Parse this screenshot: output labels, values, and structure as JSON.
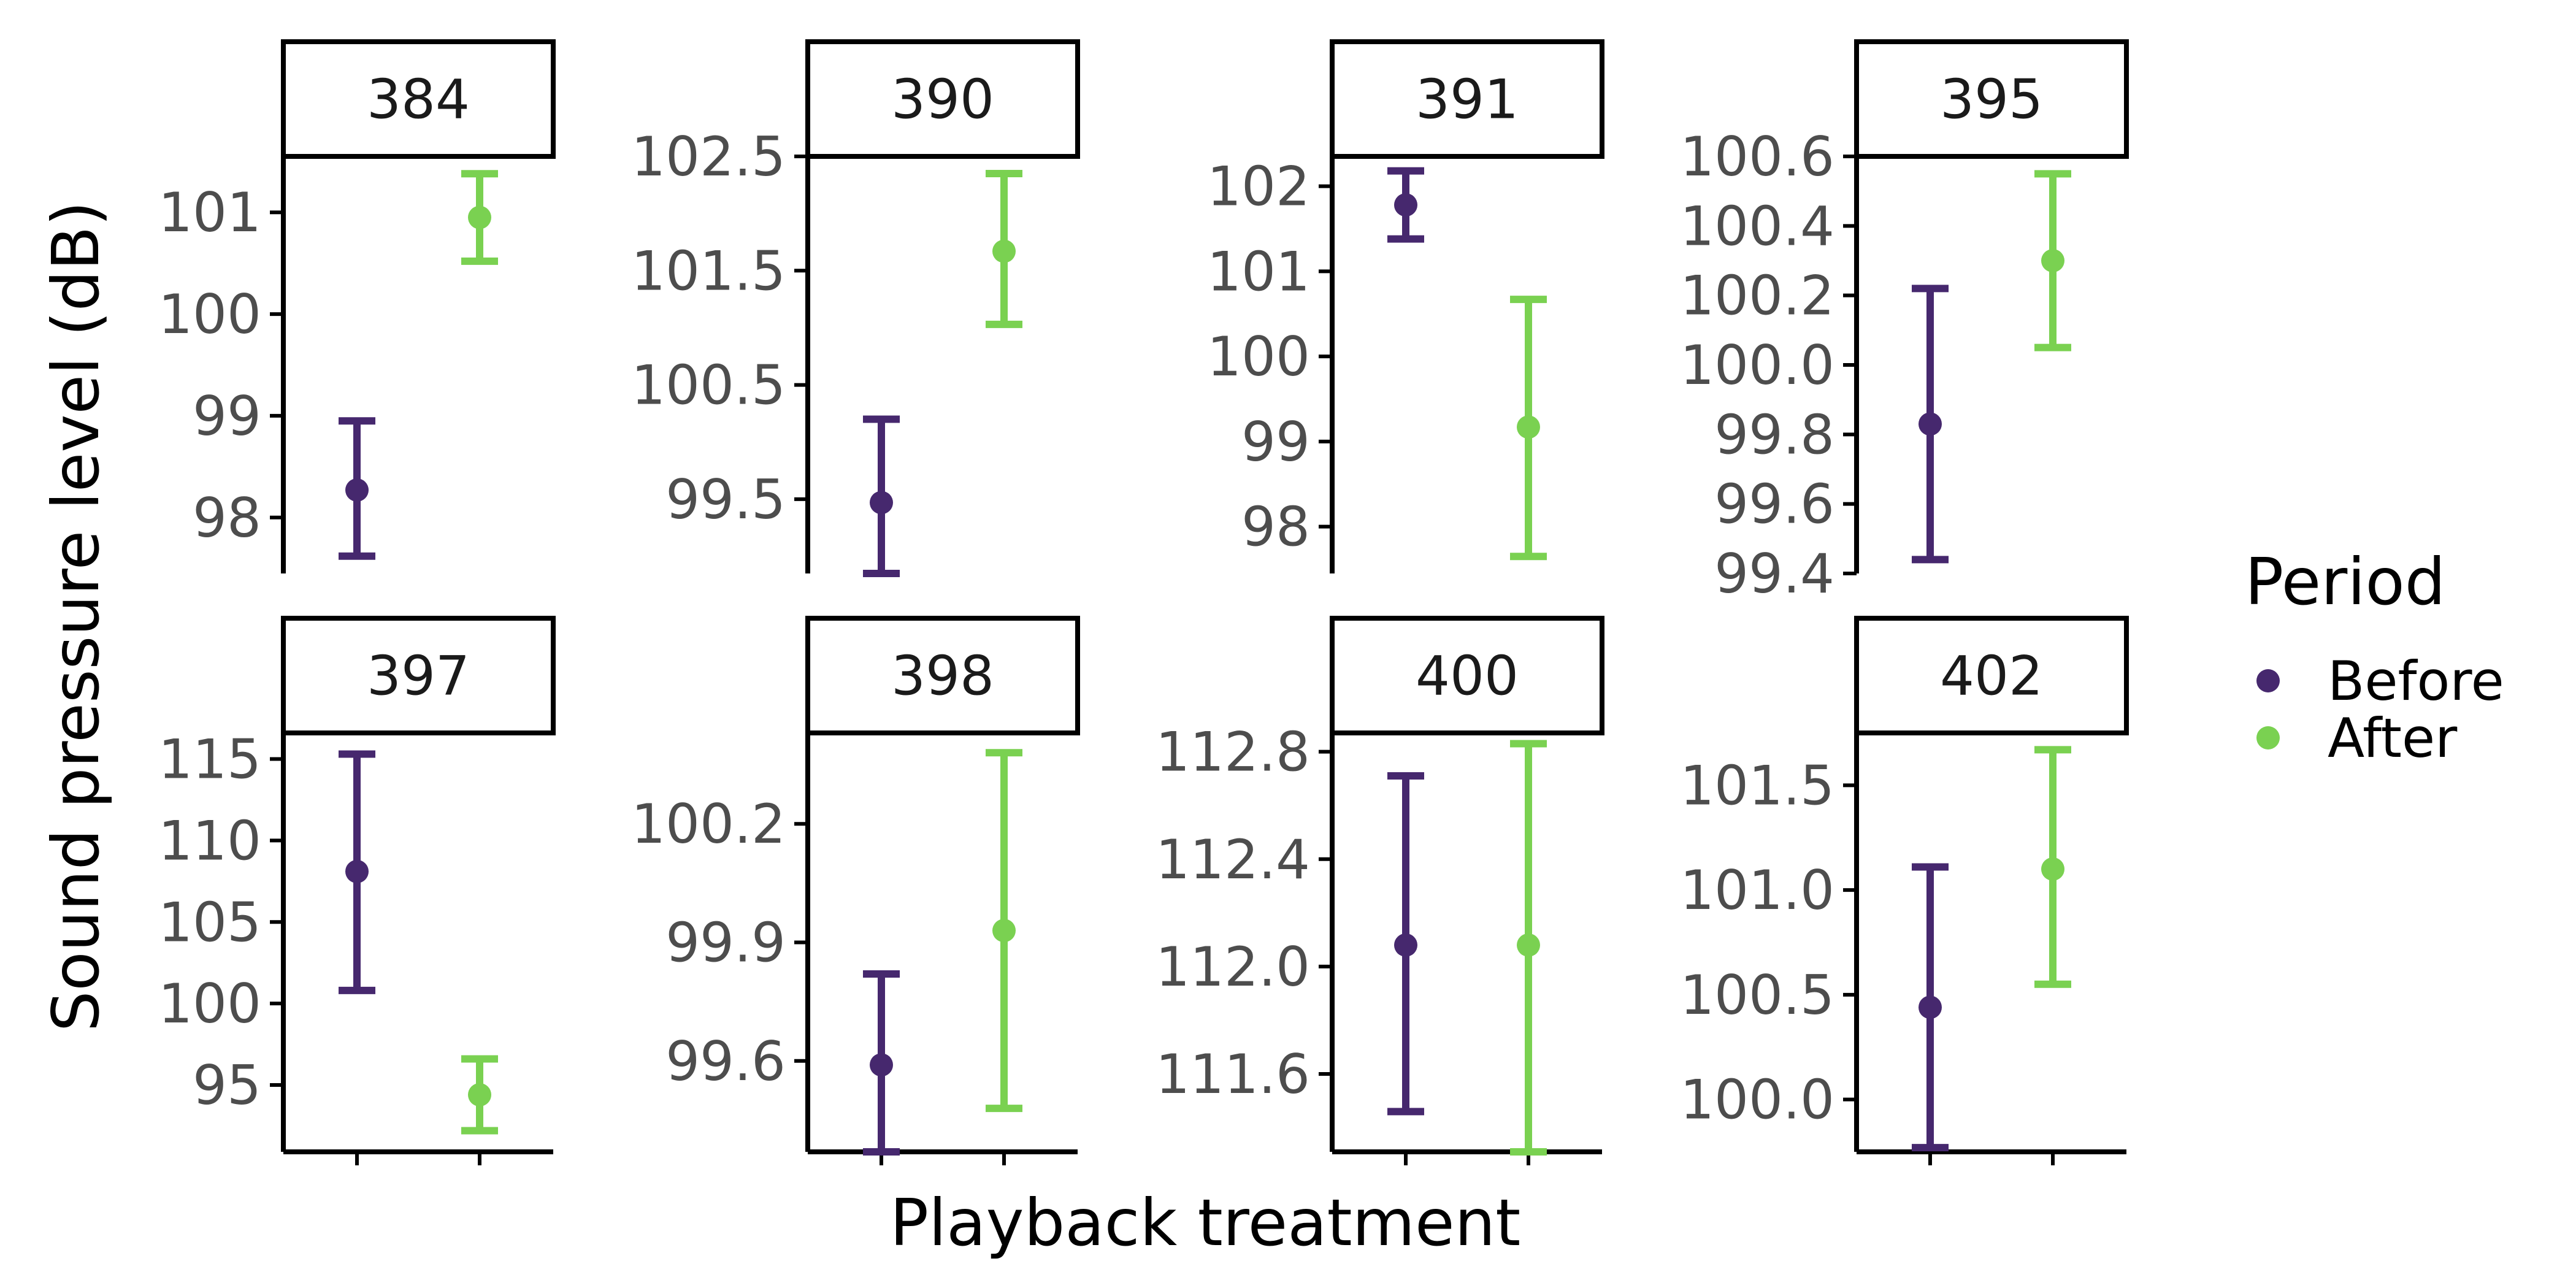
{
  "colors": {
    "before": "#46286e",
    "after": "#7ad151",
    "axis": "#000000",
    "tick_text": "#4d4d4d",
    "strip_fill": "#ffffff"
  },
  "axis_labels": {
    "x": "Playback treatment",
    "y": "Sound pressure level (dB)"
  },
  "legend": {
    "title": "Period",
    "position": "right",
    "items": [
      {
        "label": "Before",
        "color": "#46286e"
      },
      {
        "label": "After",
        "color": "#7ad151"
      }
    ]
  },
  "chart_data": {
    "type": "errorbar",
    "layout": "facet grid, 2 rows x 4 columns, free y scales",
    "xlabel": "Playback treatment",
    "ylabel": "Sound pressure level (dB)",
    "categories": [
      "Before",
      "After"
    ],
    "x_tick_labels_shown": false,
    "grid": false,
    "legend_position": "right",
    "panels": [
      {
        "id": "384",
        "ylim": [
          97.45,
          101.55
        ],
        "yticks": [
          "98",
          "99",
          "100",
          "101"
        ],
        "series": [
          {
            "name": "Before",
            "mean": 98.27,
            "lower": 97.62,
            "upper": 98.95
          },
          {
            "name": "After",
            "mean": 100.95,
            "lower": 100.52,
            "upper": 101.38
          }
        ]
      },
      {
        "id": "390",
        "ylim": [
          98.85,
          102.5
        ],
        "yticks": [
          "99.5",
          "100.5",
          "101.5",
          "102.5"
        ],
        "series": [
          {
            "name": "Before",
            "mean": 99.47,
            "lower": 98.85,
            "upper": 100.2
          },
          {
            "name": "After",
            "mean": 101.67,
            "lower": 101.03,
            "upper": 102.35
          }
        ]
      },
      {
        "id": "391",
        "ylim": [
          97.45,
          102.35
        ],
        "yticks": [
          "98",
          "99",
          "100",
          "101",
          "102"
        ],
        "series": [
          {
            "name": "Before",
            "mean": 101.78,
            "lower": 101.38,
            "upper": 102.18
          },
          {
            "name": "After",
            "mean": 99.17,
            "lower": 97.65,
            "upper": 100.67
          }
        ]
      },
      {
        "id": "395",
        "ylim": [
          99.4,
          100.6
        ],
        "yticks": [
          "99.4",
          "99.6",
          "99.8",
          "100.0",
          "100.2",
          "100.4",
          "100.6"
        ],
        "series": [
          {
            "name": "Before",
            "mean": 99.83,
            "lower": 99.44,
            "upper": 100.22
          },
          {
            "name": "After",
            "mean": 100.3,
            "lower": 100.05,
            "upper": 100.55
          }
        ]
      },
      {
        "id": "397",
        "ylim": [
          90.9,
          116.6
        ],
        "yticks": [
          "95",
          "100",
          "105",
          "110",
          "115"
        ],
        "series": [
          {
            "name": "Before",
            "mean": 108.1,
            "lower": 100.8,
            "upper": 115.3
          },
          {
            "name": "After",
            "mean": 94.4,
            "lower": 92.2,
            "upper": 96.6
          }
        ]
      },
      {
        "id": "398",
        "ylim": [
          99.37,
          100.43
        ],
        "yticks": [
          "99.6",
          "99.9",
          "100.2"
        ],
        "series": [
          {
            "name": "Before",
            "mean": 99.59,
            "lower": 99.37,
            "upper": 99.82
          },
          {
            "name": "After",
            "mean": 99.93,
            "lower": 99.48,
            "upper": 100.38
          }
        ]
      },
      {
        "id": "400",
        "ylim": [
          111.31,
          112.87
        ],
        "yticks": [
          "111.6",
          "112.0",
          "112.4",
          "112.8"
        ],
        "series": [
          {
            "name": "Before",
            "mean": 112.08,
            "lower": 111.46,
            "upper": 112.71
          },
          {
            "name": "After",
            "mean": 112.08,
            "lower": 111.31,
            "upper": 112.83
          }
        ]
      },
      {
        "id": "402",
        "ylim": [
          99.75,
          101.75
        ],
        "yticks": [
          "100.0",
          "100.5",
          "101.0",
          "101.5"
        ],
        "series": [
          {
            "name": "Before",
            "mean": 100.44,
            "lower": 99.77,
            "upper": 101.11
          },
          {
            "name": "After",
            "mean": 101.1,
            "lower": 100.55,
            "upper": 101.67
          }
        ]
      }
    ]
  }
}
